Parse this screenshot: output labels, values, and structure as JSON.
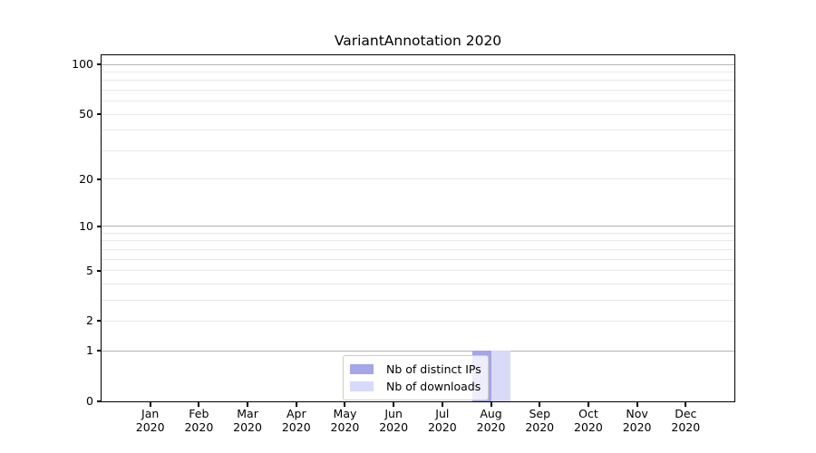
{
  "chart_data": {
    "type": "bar",
    "title": "VariantAnnotation 2020",
    "x": [
      "Jan",
      "Feb",
      "Mar",
      "Apr",
      "May",
      "Jun",
      "Jul",
      "Aug",
      "Sep",
      "Oct",
      "Nov",
      "Dec"
    ],
    "x_year": "2020",
    "series": [
      {
        "name": "Nb of distinct IPs",
        "color": "#a5a5e9",
        "values": [
          0,
          0,
          0,
          0,
          0,
          0,
          0,
          1,
          0,
          0,
          0,
          0
        ]
      },
      {
        "name": "Nb of downloads",
        "color": "#d9d9f8",
        "values": [
          0,
          0,
          0,
          0,
          0,
          0,
          0,
          1,
          0,
          0,
          0,
          0
        ]
      }
    ],
    "y_axis": {
      "scale": "log1p",
      "tick_values": [
        0,
        1,
        2,
        5,
        10,
        20,
        50,
        100
      ],
      "major_grid_values": [
        1,
        10,
        100
      ],
      "minor_grid_values": [
        2,
        3,
        4,
        5,
        6,
        7,
        8,
        9,
        20,
        30,
        40,
        50,
        60,
        70,
        80,
        90
      ],
      "ylim": [
        0,
        113
      ]
    },
    "legend": {
      "position": "lower center",
      "entries": [
        "Nb of distinct IPs",
        "Nb of downloads"
      ]
    },
    "grid": true,
    "colors": {
      "major_grid": "#b4b4b4",
      "minor_grid": "#e8e8e8",
      "axis": "#000000",
      "text": "#000000"
    }
  }
}
